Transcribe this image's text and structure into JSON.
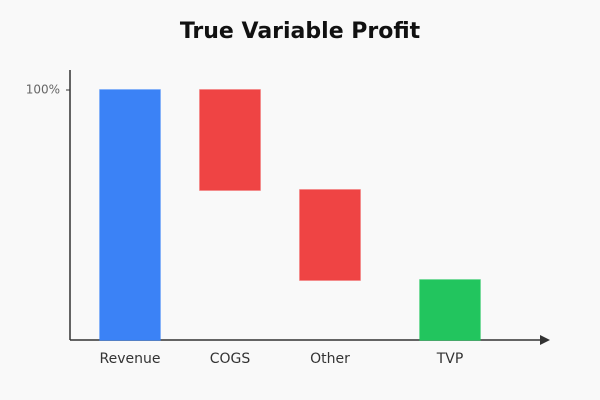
{
  "chart_data": {
    "type": "waterfall",
    "title": "True Variable Profit",
    "categories": [
      "Revenue",
      "COGS",
      "Other",
      "TVP"
    ],
    "values": [
      100,
      -40,
      -36,
      24
    ],
    "measure": [
      "absolute",
      "relative",
      "relative",
      "total"
    ],
    "colors": [
      "#3b82f6",
      "#ef4444",
      "#ef4444",
      "#22c55e"
    ],
    "ylim": [
      0,
      108
    ],
    "yticks": [
      {
        "value": 100,
        "label": "100%"
      }
    ],
    "grid": false
  }
}
